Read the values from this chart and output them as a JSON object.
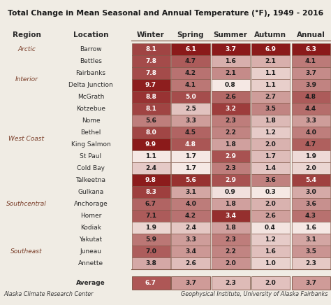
{
  "title": "Total Change in Mean Seasonal and Annual Temperature (°F), 1949 - 2016",
  "columns": [
    "Winter",
    "Spring",
    "Summer",
    "Autumn",
    "Annual"
  ],
  "regions": [
    "Arctic",
    "Interior",
    "",
    "",
    "",
    "West Coast",
    "",
    "",
    "",
    "",
    "",
    "Southcentral",
    "",
    "",
    "",
    "",
    "Southeast",
    "",
    ""
  ],
  "locations": [
    "Barrow",
    "Bettles",
    "Fairbanks",
    "Delta Junction",
    "McGrath",
    "Kotzebue",
    "Nome",
    "Bethel",
    "King Salmon",
    "St Paul",
    "Cold Bay",
    "Talkeetna",
    "Gulkana",
    "Anchorage",
    "Homer",
    "Kodiak",
    "Yakutat",
    "Juneau",
    "Annette"
  ],
  "data": [
    [
      8.1,
      6.1,
      3.7,
      6.9,
      6.3
    ],
    [
      7.8,
      4.7,
      1.6,
      2.1,
      4.1
    ],
    [
      7.8,
      4.2,
      2.1,
      1.1,
      3.7
    ],
    [
      9.7,
      4.1,
      0.8,
      1.1,
      3.9
    ],
    [
      8.8,
      5.0,
      2.6,
      2.7,
      4.8
    ],
    [
      8.1,
      2.5,
      3.2,
      3.5,
      4.4
    ],
    [
      5.6,
      3.3,
      2.3,
      1.8,
      3.3
    ],
    [
      8.0,
      4.5,
      2.2,
      1.2,
      4.0
    ],
    [
      9.9,
      4.8,
      1.8,
      2.0,
      4.7
    ],
    [
      1.1,
      1.7,
      2.9,
      1.7,
      1.9
    ],
    [
      2.4,
      1.7,
      2.3,
      1.4,
      2.0
    ],
    [
      9.8,
      5.6,
      2.9,
      3.6,
      5.4
    ],
    [
      8.3,
      3.1,
      0.9,
      0.3,
      3.0
    ],
    [
      6.7,
      4.0,
      1.8,
      2.0,
      3.6
    ],
    [
      7.1,
      4.2,
      3.4,
      2.6,
      4.3
    ],
    [
      1.9,
      2.4,
      1.8,
      0.4,
      1.6
    ],
    [
      5.9,
      3.3,
      2.3,
      1.2,
      3.1
    ],
    [
      7.0,
      3.4,
      2.2,
      1.6,
      3.5
    ],
    [
      3.8,
      2.6,
      2.0,
      1.0,
      2.3
    ]
  ],
  "average": [
    6.7,
    3.7,
    2.3,
    2.0,
    3.7
  ],
  "footer_left": "Alaska Climate Research Center",
  "footer_right": "Geophysical Institute, University of Alaska Fairbanks",
  "bg_color": "#f0ece4",
  "region_color": "#7B3F2A",
  "location_color": "#2a2a2a",
  "col_header_color": "#2a2a2a",
  "cell_dark_color": "#8B1A1A",
  "cell_light_color": "#f5e8e4",
  "border_color": "#7a5040",
  "avg_dark_color": "#7B1010"
}
